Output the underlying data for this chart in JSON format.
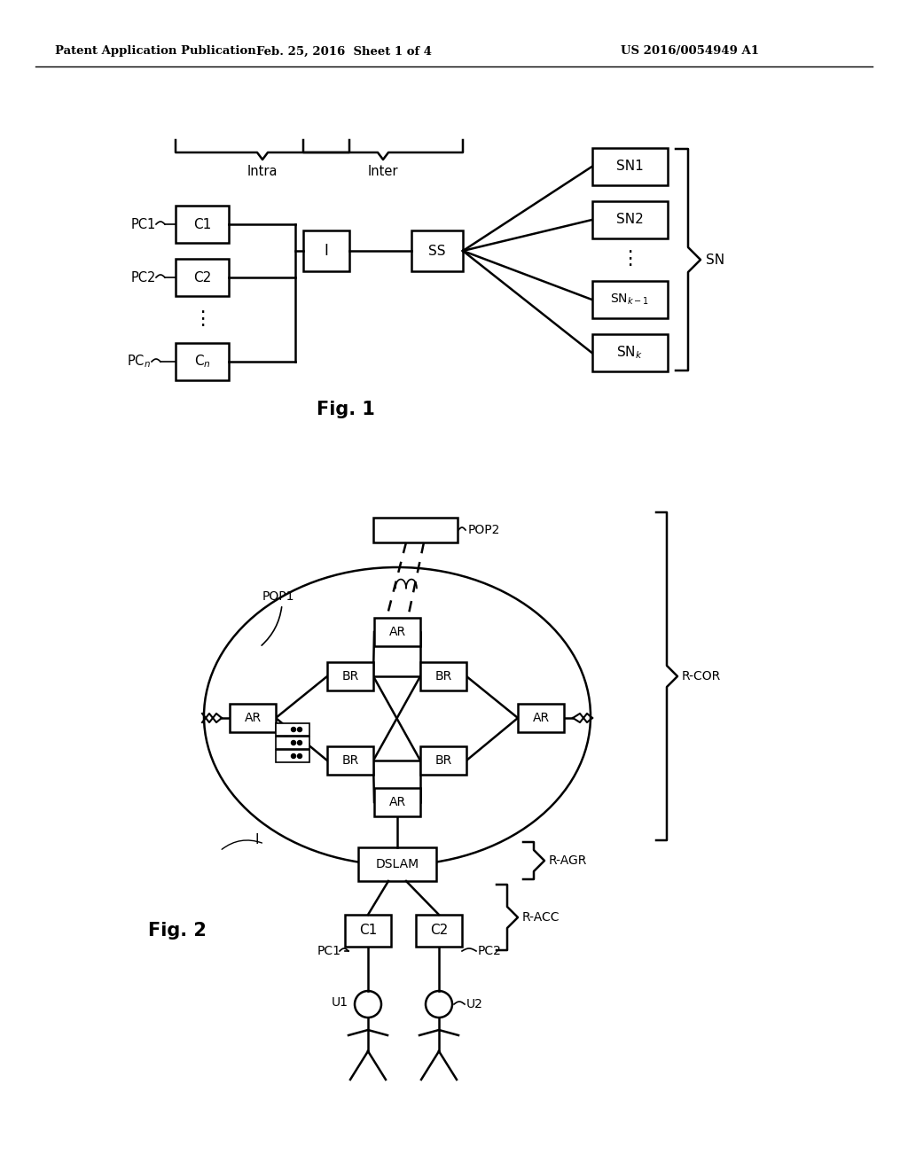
{
  "bg_color": "#ffffff",
  "header_left": "Patent Application Publication",
  "header_mid": "Feb. 25, 2016  Sheet 1 of 4",
  "header_right": "US 2016/0054949 A1",
  "fig1_label": "Fig. 1",
  "fig2_label": "Fig. 2"
}
